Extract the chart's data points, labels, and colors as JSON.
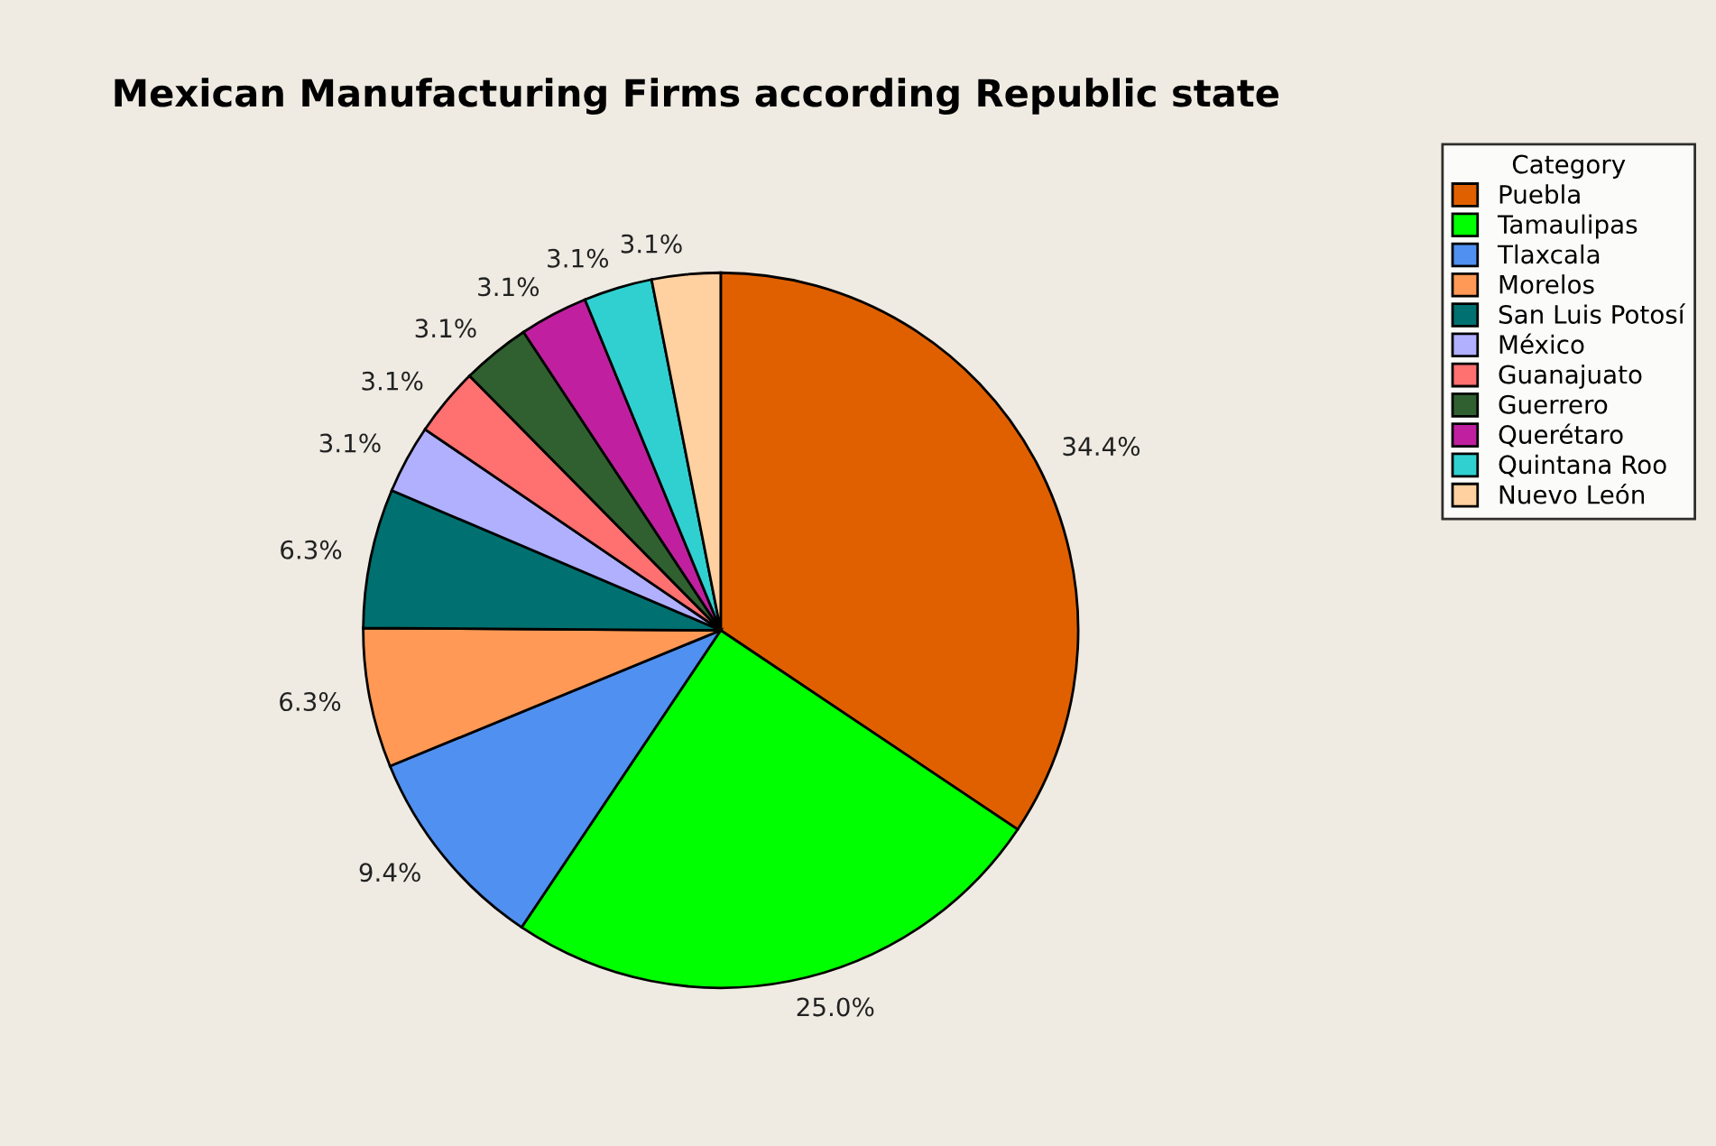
{
  "chart_data": {
    "type": "pie",
    "title": "Mexican Manufacturing Firms according Republic state",
    "legend_title": "Category",
    "legend": "top right",
    "categories": [
      "Puebla",
      "Tamaulipas",
      "Tlaxcala",
      "Morelos",
      "San Luis Potosí",
      "México",
      "Guanajuato",
      "Guerrero",
      "Querétaro",
      "Quintana Roo",
      "Nuevo León"
    ],
    "values": [
      34.4,
      25.0,
      9.4,
      6.3,
      6.3,
      3.1,
      3.1,
      3.1,
      3.1,
      3.1,
      3.1
    ],
    "value_labels": [
      "34.4%",
      "25.0%",
      "9.4%",
      "6.3%",
      "6.3%",
      "3.1%",
      "3.1%",
      "3.1%",
      "3.1%",
      "3.1%",
      "3.1%"
    ],
    "colors": [
      "#e06000",
      "#00ff00",
      "#5090f0",
      "#ff9955",
      "#007070",
      "#b0b0ff",
      "#ff7070",
      "#306030",
      "#c020a0",
      "#30d0d0",
      "#ffd0a0"
    ]
  }
}
